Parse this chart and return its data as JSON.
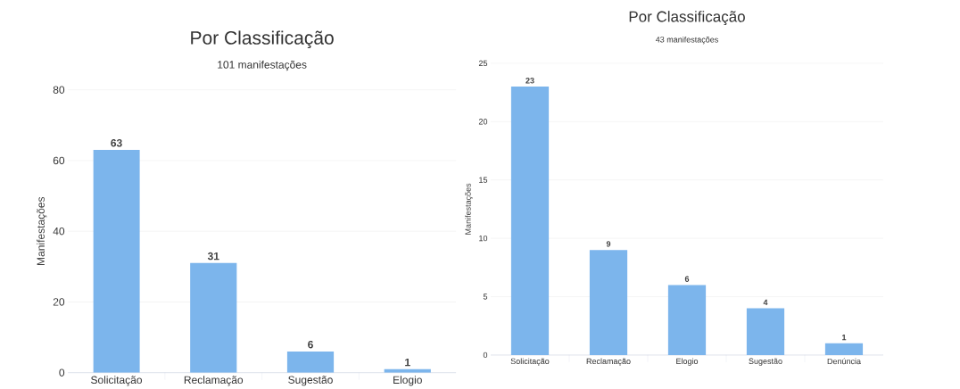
{
  "chart_data": [
    {
      "type": "bar",
      "title": "Por Classificação",
      "subtitle": "101 manifestações",
      "ylabel": "Manifestações",
      "categories": [
        "Solicitação",
        "Reclamação",
        "Sugestão",
        "Elogio"
      ],
      "values": [
        63,
        31,
        6,
        1
      ],
      "color": "#7cb5ec",
      "ylim": [
        0,
        80
      ],
      "yticks": [
        0,
        20,
        40,
        60,
        80
      ],
      "grid": "y",
      "data_labels": true
    },
    {
      "type": "bar",
      "title": "Por Classificação",
      "subtitle": "43 manifestações",
      "ylabel": "Manifestações",
      "categories": [
        "Solicitação",
        "Reclamação",
        "Elogio",
        "Sugestão",
        "Denúncia"
      ],
      "values": [
        23,
        9,
        6,
        4,
        1
      ],
      "color": "#7cb5ec",
      "ylim": [
        0,
        25
      ],
      "yticks": [
        0,
        5,
        10,
        15,
        20,
        25
      ],
      "grid": "y",
      "data_labels": true
    }
  ]
}
